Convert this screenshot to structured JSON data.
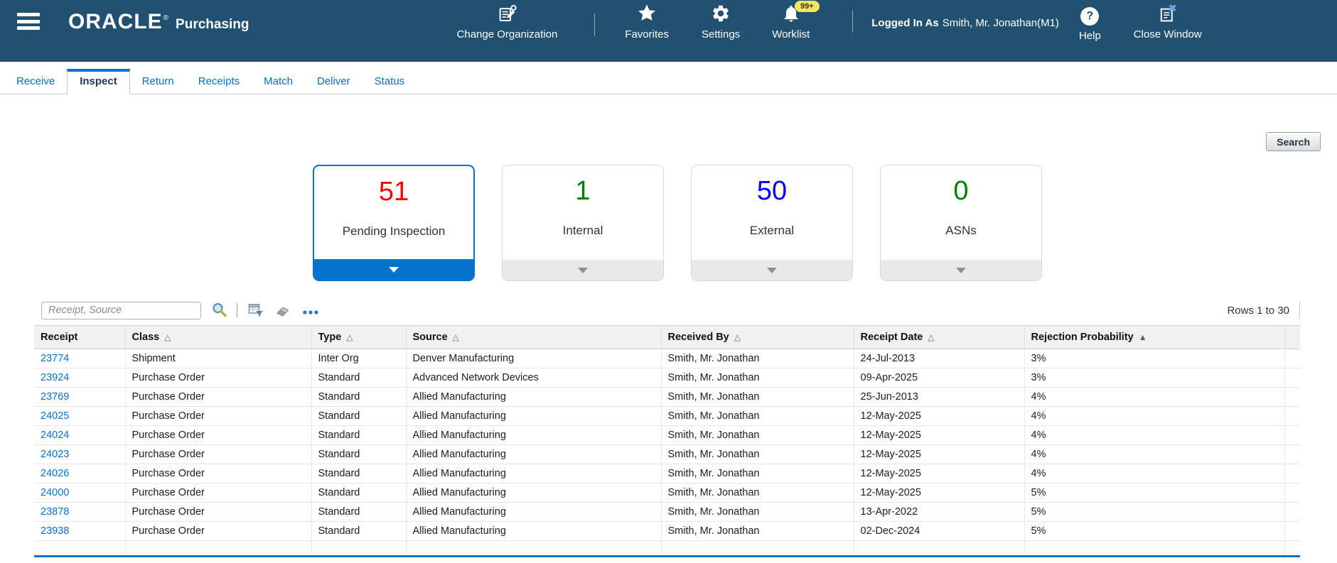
{
  "colors": {
    "accent_blue": "#0572ce",
    "header_bg": "#215070"
  },
  "header": {
    "logo": "ORACLE",
    "logo_registered": "®",
    "app_name": "Purchasing",
    "nav_items": [
      {
        "id": "change-organization",
        "label": "Change Organization",
        "icon": "change-organization-icon"
      },
      {
        "id": "favorites",
        "label": "Favorites",
        "icon": "star-icon"
      },
      {
        "id": "settings",
        "label": "Settings",
        "icon": "gear-icon"
      },
      {
        "id": "worklist",
        "label": "Worklist",
        "icon": "bell-icon",
        "badge": "99+"
      }
    ],
    "logged_in_label": "Logged In As",
    "logged_in_user": "Smith, Mr. Jonathan(M1)",
    "help_label": "Help",
    "close_label": "Close Window"
  },
  "tabs": [
    {
      "label": "Receive",
      "active": false
    },
    {
      "label": "Inspect",
      "active": true
    },
    {
      "label": "Return",
      "active": false
    },
    {
      "label": "Receipts",
      "active": false
    },
    {
      "label": "Match",
      "active": false
    },
    {
      "label": "Deliver",
      "active": false
    },
    {
      "label": "Status",
      "active": false
    }
  ],
  "search_button": "Search",
  "summary_cards": [
    {
      "value": "51",
      "label": "Pending Inspection",
      "value_color": "#ff0000",
      "selected": true
    },
    {
      "value": "1",
      "label": "Internal",
      "value_color": "#008000",
      "selected": false
    },
    {
      "value": "50",
      "label": "External",
      "value_color": "#0000ff",
      "selected": false
    },
    {
      "value": "0",
      "label": "ASNs",
      "value_color": "#008000",
      "selected": false
    }
  ],
  "toolbar": {
    "search_placeholder": "Receipt, Source",
    "icons": [
      "magnifier-icon",
      "query-by-example-icon",
      "eraser-icon",
      "more-actions-icon"
    ],
    "rows_label": "Rows 1 to 30"
  },
  "table": {
    "columns": [
      {
        "label": "Receipt",
        "sort": "none"
      },
      {
        "label": "Class",
        "sort": "unsorted"
      },
      {
        "label": "Type",
        "sort": "unsorted"
      },
      {
        "label": "Source",
        "sort": "unsorted"
      },
      {
        "label": "Received By",
        "sort": "unsorted"
      },
      {
        "label": "Receipt Date",
        "sort": "unsorted"
      },
      {
        "label": "Rejection Probability",
        "sort": "sorted"
      }
    ],
    "rows": [
      {
        "receipt": "23774",
        "class": "Shipment",
        "type": "Inter Org",
        "source": "Denver Manufacturing",
        "received_by": "Smith, Mr. Jonathan",
        "receipt_date": "24-Jul-2013",
        "rejection_probability": "3%"
      },
      {
        "receipt": "23924",
        "class": "Purchase Order",
        "type": "Standard",
        "source": "Advanced Network Devices",
        "received_by": "Smith, Mr. Jonathan",
        "receipt_date": "09-Apr-2025",
        "rejection_probability": "3%"
      },
      {
        "receipt": "23769",
        "class": "Purchase Order",
        "type": "Standard",
        "source": "Allied Manufacturing",
        "received_by": "Smith, Mr. Jonathan",
        "receipt_date": "25-Jun-2013",
        "rejection_probability": "4%"
      },
      {
        "receipt": "24025",
        "class": "Purchase Order",
        "type": "Standard",
        "source": "Allied Manufacturing",
        "received_by": "Smith, Mr. Jonathan",
        "receipt_date": "12-May-2025",
        "rejection_probability": "4%"
      },
      {
        "receipt": "24024",
        "class": "Purchase Order",
        "type": "Standard",
        "source": "Allied Manufacturing",
        "received_by": "Smith, Mr. Jonathan",
        "receipt_date": "12-May-2025",
        "rejection_probability": "4%"
      },
      {
        "receipt": "24023",
        "class": "Purchase Order",
        "type": "Standard",
        "source": "Allied Manufacturing",
        "received_by": "Smith, Mr. Jonathan",
        "receipt_date": "12-May-2025",
        "rejection_probability": "4%"
      },
      {
        "receipt": "24026",
        "class": "Purchase Order",
        "type": "Standard",
        "source": "Allied Manufacturing",
        "received_by": "Smith, Mr. Jonathan",
        "receipt_date": "12-May-2025",
        "rejection_probability": "4%"
      },
      {
        "receipt": "24000",
        "class": "Purchase Order",
        "type": "Standard",
        "source": "Allied Manufacturing",
        "received_by": "Smith, Mr. Jonathan",
        "receipt_date": "12-May-2025",
        "rejection_probability": "5%"
      },
      {
        "receipt": "23878",
        "class": "Purchase Order",
        "type": "Standard",
        "source": "Allied Manufacturing",
        "received_by": "Smith, Mr. Jonathan",
        "receipt_date": "13-Apr-2022",
        "rejection_probability": "5%"
      },
      {
        "receipt": "23938",
        "class": "Purchase Order",
        "type": "Standard",
        "source": "Allied Manufacturing",
        "received_by": "Smith, Mr. Jonathan",
        "receipt_date": "02-Dec-2024",
        "rejection_probability": "5%"
      }
    ]
  }
}
